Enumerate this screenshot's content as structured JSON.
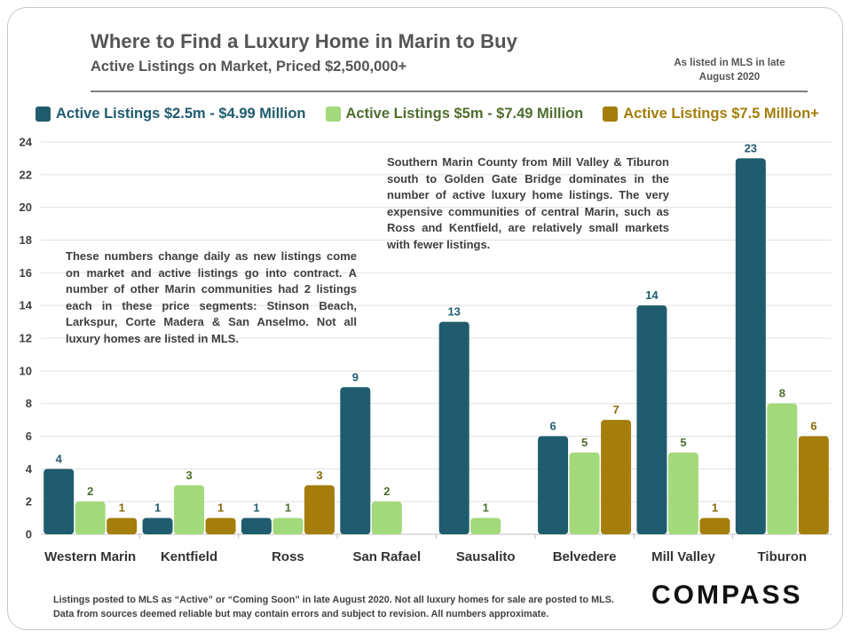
{
  "header": {
    "title": "Where to Find a Luxury Home in Marin to Buy",
    "subtitle": "Active Listings on Market, Priced $2,500,000+",
    "note": "As listed in MLS in late August 2020"
  },
  "annotations": {
    "left": "These numbers change daily as new listings come on market and active listings go into contract. A number of other Marin communities had 2 listings each in these price segments: Stinson Beach, Larkspur, Corte Madera & San Anselmo. Not all luxury homes are listed in MLS.",
    "right": "Southern Marin County from Mill Valley & Tiburon south to Golden Gate Bridge dominates in the number of active luxury home listings. The very expensive communities of central Marin, such as Ross and Kentfield, are relatively small markets with fewer listings."
  },
  "footer": {
    "footnote": "Listings posted to MLS as “Active” or “Coming Soon” in late August 2020. Not all luxury homes for sale are posted to MLS. Data from sources deemed reliable but may contain errors and subject to revision. All numbers approximate.",
    "logo": "COMPASS"
  },
  "colors": {
    "series1": "#1f5c6e",
    "series2": "#a2d97a",
    "series3": "#a47d0a",
    "series1_label": "#1f5c6e",
    "series2_label": "#4f6e2e",
    "series3_label": "#8a6a08"
  },
  "chart_data": {
    "type": "bar",
    "title": "Where to Find a Luxury Home in Marin to Buy",
    "subtitle": "Active Listings on Market, Priced $2,500,000+",
    "categories": [
      "Western Marin",
      "Kentfield",
      "Ross",
      "San Rafael",
      "Sausalito",
      "Belvedere",
      "Mill Valley",
      "Tiburon"
    ],
    "series": [
      {
        "name": "Active Listings $2.5m - $4.99 Million",
        "values": [
          4,
          1,
          1,
          9,
          13,
          6,
          14,
          23
        ]
      },
      {
        "name": "Active Listings $5m - $7.49 Million",
        "values": [
          2,
          3,
          1,
          2,
          1,
          5,
          5,
          8
        ]
      },
      {
        "name": "Active Listings $7.5 Million+",
        "values": [
          1,
          1,
          3,
          null,
          null,
          7,
          1,
          6
        ]
      }
    ],
    "yticks": [
      0,
      2,
      4,
      6,
      8,
      10,
      12,
      14,
      16,
      18,
      20,
      22,
      24
    ],
    "ylim": [
      0,
      24
    ],
    "xlabel": "",
    "ylabel": "",
    "grid": true,
    "legend": "top"
  }
}
